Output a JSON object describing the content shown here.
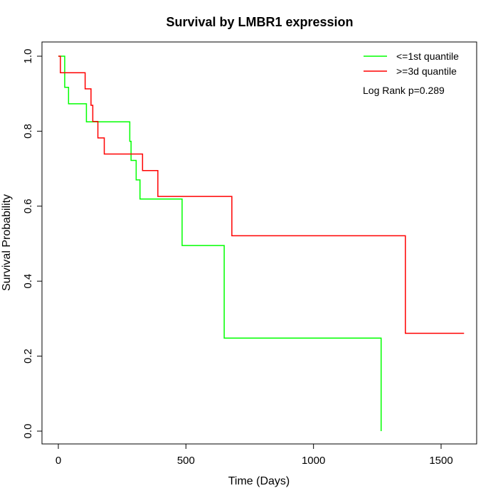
{
  "chart_data": {
    "type": "line",
    "title": "Survival by LMBR1 expression",
    "xlabel": "Time (Days)",
    "ylabel": "Survival Probability",
    "xlim": [
      0,
      1650
    ],
    "ylim": [
      0,
      1.0
    ],
    "x_ticks": [
      0,
      500,
      1000,
      1500
    ],
    "x_tick_labels": [
      "0",
      "500",
      "1000",
      "1500"
    ],
    "y_ticks": [
      0.0,
      0.2,
      0.4,
      0.6,
      0.8,
      1.0
    ],
    "y_tick_labels": [
      "0.0",
      "0.2",
      "0.4",
      "0.6",
      "0.8",
      "1.0"
    ],
    "grid": false,
    "legend_position": "top-right",
    "annotation": "Log Rank p=0.289",
    "series": [
      {
        "name": "<=1st quantile",
        "color": "#00ff00",
        "step_points": [
          [
            0,
            1.0
          ],
          [
            25,
            0.917
          ],
          [
            40,
            0.873
          ],
          [
            110,
            0.825
          ],
          [
            280,
            0.773
          ],
          [
            285,
            0.722
          ],
          [
            305,
            0.67
          ],
          [
            320,
            0.619
          ],
          [
            485,
            0.495
          ],
          [
            650,
            0.248
          ],
          [
            1265,
            0.0
          ]
        ]
      },
      {
        "name": ">=3d quantile",
        "color": "#ff0000",
        "step_points": [
          [
            0,
            1.0
          ],
          [
            8,
            0.956
          ],
          [
            105,
            0.913
          ],
          [
            128,
            0.869
          ],
          [
            135,
            0.826
          ],
          [
            155,
            0.782
          ],
          [
            180,
            0.739
          ],
          [
            330,
            0.695
          ],
          [
            390,
            0.626
          ],
          [
            680,
            0.521
          ],
          [
            1360,
            0.261
          ],
          [
            1590,
            0.261
          ]
        ]
      }
    ]
  }
}
